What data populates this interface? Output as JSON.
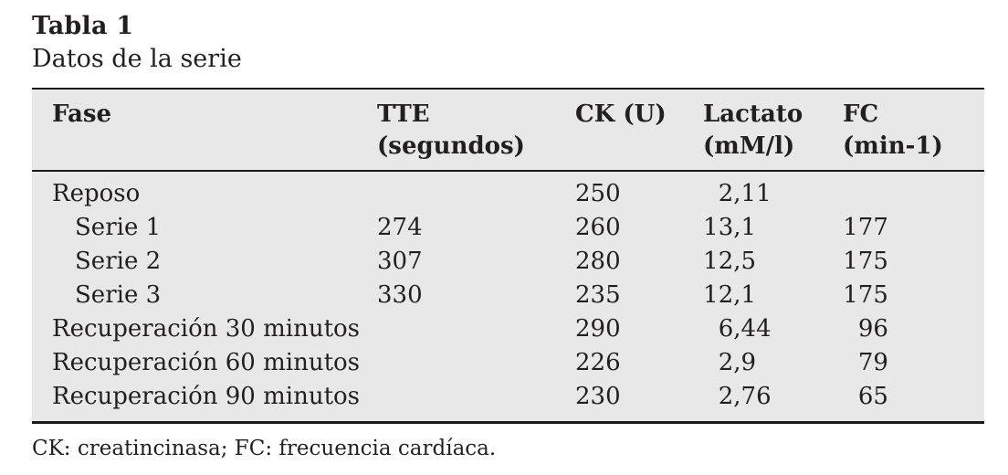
{
  "colors": {
    "page_background": "#ffffff",
    "table_background": "#e8e8e8",
    "rule_color": "#1a1a1a",
    "text_color": "#231f20"
  },
  "title": "Tabla 1",
  "subtitle": "Datos de la serie",
  "table": {
    "columns": [
      {
        "label": "Fase",
        "sublabel": ""
      },
      {
        "label": "TTE",
        "sublabel": "(segundos)"
      },
      {
        "label": "CK (U)",
        "sublabel": ""
      },
      {
        "label": "Lactato",
        "sublabel": "(mM/l)"
      },
      {
        "label": "FC",
        "sublabel": "(min-1)"
      }
    ],
    "rows": [
      {
        "fase": "Reposo",
        "tte": "",
        "ck": "250",
        "lactato": "2,11",
        "fc": ""
      },
      {
        "fase": "Serie 1",
        "tte": "274",
        "ck": "260",
        "lactato": "13,1",
        "fc": "177"
      },
      {
        "fase": "Serie 2",
        "tte": "307",
        "ck": "280",
        "lactato": "12,5",
        "fc": "175"
      },
      {
        "fase": "Serie 3",
        "tte": "330",
        "ck": "235",
        "lactato": "12,1",
        "fc": "175"
      },
      {
        "fase": "Recuperación 30 minutos",
        "tte": "",
        "ck": "290",
        "lactato": "6,44",
        "fc": "96"
      },
      {
        "fase": "Recuperación 60 minutos",
        "tte": "",
        "ck": "226",
        "lactato": "2,9",
        "fc": "79"
      },
      {
        "fase": "Recuperación 90 minutos",
        "tte": "",
        "ck": "230",
        "lactato": "2,76",
        "fc": "65"
      }
    ],
    "footnote": "CK: creatincinasa; FC: frecuencia cardíaca."
  },
  "chart_data": {
    "type": "table",
    "title": "Tabla 1",
    "subtitle": "Datos de la serie",
    "columns": [
      "Fase",
      "TTE (segundos)",
      "CK (U)",
      "Lactato (mM/l)",
      "FC (min-1)"
    ],
    "rows": [
      [
        "Reposo",
        null,
        250,
        2.11,
        null
      ],
      [
        "Serie 1",
        274,
        260,
        13.1,
        177
      ],
      [
        "Serie 2",
        307,
        280,
        12.5,
        175
      ],
      [
        "Serie 3",
        330,
        235,
        12.1,
        175
      ],
      [
        "Recuperación 30 minutos",
        null,
        290,
        6.44,
        96
      ],
      [
        "Recuperación 60 minutos",
        null,
        226,
        2.9,
        79
      ],
      [
        "Recuperación 90 minutos",
        null,
        230,
        2.76,
        65
      ]
    ],
    "footnote": "CK: creatincinasa; FC: frecuencia cardíaca."
  }
}
